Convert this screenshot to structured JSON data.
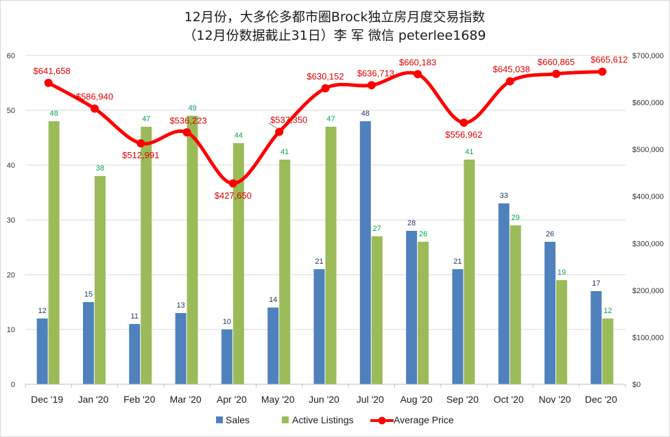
{
  "chart_data": {
    "type": "bar",
    "title": "12月份，大多伦多都市圈Brock独立房月度交易指数",
    "subtitle": "（12月份数据截止31日）李 军  微信  peterlee1689",
    "categories": [
      "Dec '19",
      "Jan '20",
      "Feb '20",
      "Mar '20",
      "Apr '20",
      "May '20",
      "Jun '20",
      "Jul '20",
      "Aug '20",
      "Sep '20",
      "Oct '20",
      "Nov '20",
      "Dec '20"
    ],
    "series": [
      {
        "name": "Sales",
        "type": "bar",
        "axis": "left",
        "color": "#4f81bd",
        "label_color": "#1f3864",
        "values": [
          12,
          15,
          11,
          13,
          10,
          14,
          21,
          48,
          28,
          21,
          33,
          26,
          17
        ]
      },
      {
        "name": "Active Listings",
        "type": "bar",
        "axis": "left",
        "color": "#9bbb59",
        "label_color": "#00a550",
        "values": [
          48,
          38,
          47,
          49,
          44,
          41,
          47,
          27,
          26,
          41,
          29,
          19,
          12
        ]
      },
      {
        "name": "Average Price",
        "type": "line",
        "axis": "right",
        "color": "#ff0000",
        "label_color": "#e00000",
        "values": [
          641658,
          586940,
          512991,
          536223,
          427650,
          537350,
          630152,
          636713,
          660183,
          556962,
          645038,
          660865,
          665612
        ],
        "labels": [
          "$641,658",
          "$586,940",
          "$512,991",
          "$536,223",
          "$427,650",
          "$537,350",
          "$630,152",
          "$636,713",
          "$660,183",
          "$556,962",
          "$645,038",
          "$660,865",
          "$665,612"
        ]
      }
    ],
    "y_left": {
      "min": 0,
      "max": 60,
      "ticks": [
        "0",
        "10",
        "20",
        "30",
        "40",
        "50",
        "60"
      ]
    },
    "y_right": {
      "min": 0,
      "max": 700000,
      "ticks": [
        "$0",
        "$100,000",
        "$200,000",
        "$300,000",
        "$400,000",
        "$500,000",
        "$600,000",
        "$700,000"
      ]
    },
    "grid": true,
    "legend_position": "bottom"
  }
}
